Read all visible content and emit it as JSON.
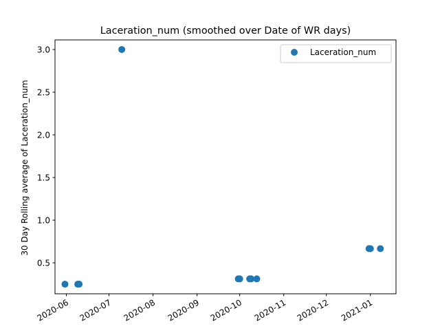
{
  "chart_data": {
    "type": "scatter",
    "title": "Laceration_num (smoothed over Date of WR days)",
    "xlabel": "",
    "ylabel": "30 Day Rolling average of Laceration_num",
    "x_type": "date",
    "xlim": [
      "2020-05-24",
      "2021-01-19"
    ],
    "ylim": [
      0.1375,
      3.1125
    ],
    "xticks": [
      "2020-06-01",
      "2020-07-01",
      "2020-08-01",
      "2020-09-01",
      "2020-10-01",
      "2020-11-01",
      "2020-12-01",
      "2021-01-01"
    ],
    "xtick_labels": [
      "2020-06",
      "2020-07",
      "2020-08",
      "2020-09",
      "2020-10",
      "2020-11",
      "2020-12",
      "2021-01"
    ],
    "yticks": [
      0.5,
      1.0,
      1.5,
      2.0,
      2.5,
      3.0
    ],
    "ytick_labels": [
      "0.5",
      "1.0",
      "1.5",
      "2.0",
      "2.5",
      "3.0"
    ],
    "grid": false,
    "legend": {
      "position": "top-right",
      "entries": [
        "Laceration_num"
      ]
    },
    "series": [
      {
        "name": "Laceration_num",
        "color": "#1f77b4",
        "marker": "circle",
        "points": [
          {
            "x": "2020-05-31",
            "y": 0.25
          },
          {
            "x": "2020-06-09",
            "y": 0.25
          },
          {
            "x": "2020-06-10",
            "y": 0.25
          },
          {
            "x": "2020-07-10",
            "y": 3.0
          },
          {
            "x": "2020-09-30",
            "y": 0.3125
          },
          {
            "x": "2020-10-01",
            "y": 0.3125
          },
          {
            "x": "2020-10-08",
            "y": 0.3125
          },
          {
            "x": "2020-10-09",
            "y": 0.3125
          },
          {
            "x": "2020-10-13",
            "y": 0.3125
          },
          {
            "x": "2020-12-31",
            "y": 0.6667
          },
          {
            "x": "2021-01-01",
            "y": 0.6667
          },
          {
            "x": "2021-01-08",
            "y": 0.6667
          }
        ]
      }
    ]
  }
}
